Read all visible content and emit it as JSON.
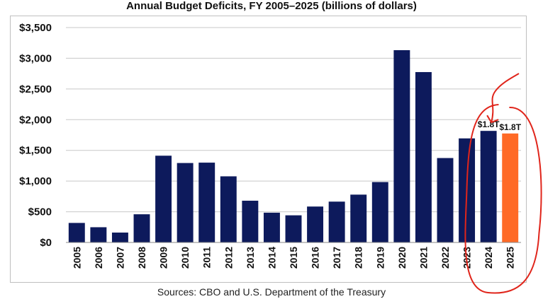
{
  "chart_data": {
    "type": "bar",
    "title": "Annual Budget Deficits, FY 2005–2025 (billions of dollars)",
    "xlabel": "",
    "ylabel": "",
    "categories": [
      "2005",
      "2006",
      "2007",
      "2008",
      "2009",
      "2010",
      "2011",
      "2012",
      "2013",
      "2014",
      "2015",
      "2016",
      "2017",
      "2018",
      "2019",
      "2020",
      "2021",
      "2022",
      "2023",
      "2024",
      "2025"
    ],
    "values": [
      318,
      248,
      161,
      459,
      1413,
      1294,
      1300,
      1077,
      680,
      485,
      442,
      585,
      665,
      779,
      984,
      3132,
      2775,
      1375,
      1695,
      1817,
      1775
    ],
    "ylim": [
      0,
      3500
    ],
    "y_ticks": [
      "$0",
      "$500",
      "$1,000",
      "$1,500",
      "$2,000",
      "$2,500",
      "$3,000",
      "$3,500"
    ],
    "y_tick_values": [
      0,
      500,
      1000,
      1500,
      2000,
      2500,
      3000,
      3500
    ],
    "data_labels": [
      {
        "category": "2024",
        "text": "$1.8T"
      },
      {
        "category": "2025",
        "text": "$1.8T"
      }
    ],
    "colors": {
      "bar": "#0d1a5c",
      "highlight_bar": "#ff6a26",
      "grid": "#c8c8c8",
      "annotation": "#e0251b"
    },
    "highlight_category": "2025",
    "grid": true,
    "legend": "none"
  },
  "source_note": "Sources: CBO and U.S. Department of the Treasury"
}
